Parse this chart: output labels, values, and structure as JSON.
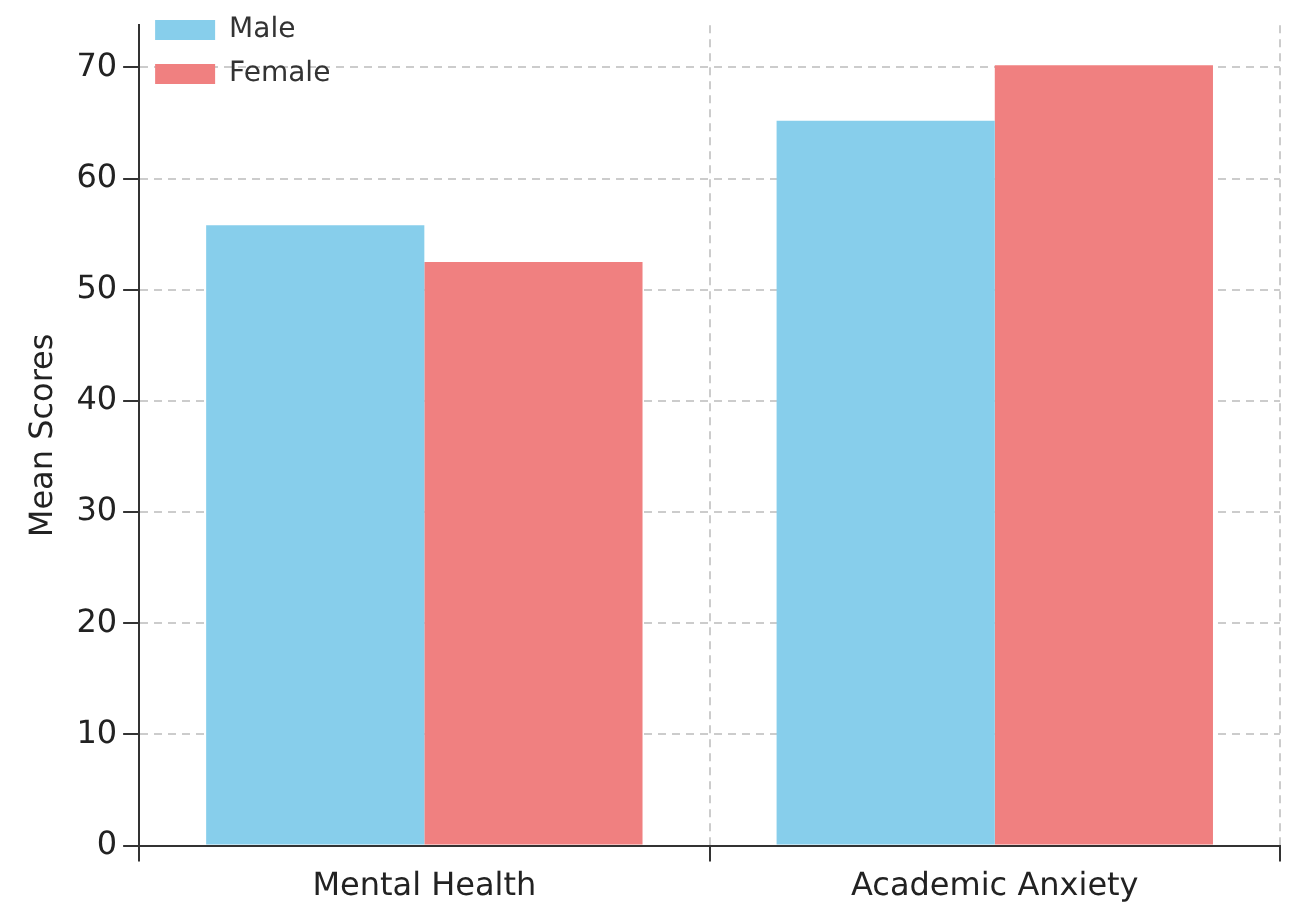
{
  "chart_data": {
    "type": "bar",
    "ylabel": "Mean Scores",
    "categories": [
      "Mental Health",
      "Academic Anxiety"
    ],
    "series": [
      {
        "name": "Male",
        "color": "#87ceeb",
        "values": [
          55.8,
          65.2
        ]
      },
      {
        "name": "Female",
        "color": "#f08080",
        "values": [
          52.5,
          70.2
        ]
      }
    ],
    "ylim": [
      0,
      73.8
    ],
    "yticks": [
      0,
      10,
      20,
      30,
      40,
      50,
      60,
      70
    ],
    "grid": true,
    "legend": "top left"
  }
}
